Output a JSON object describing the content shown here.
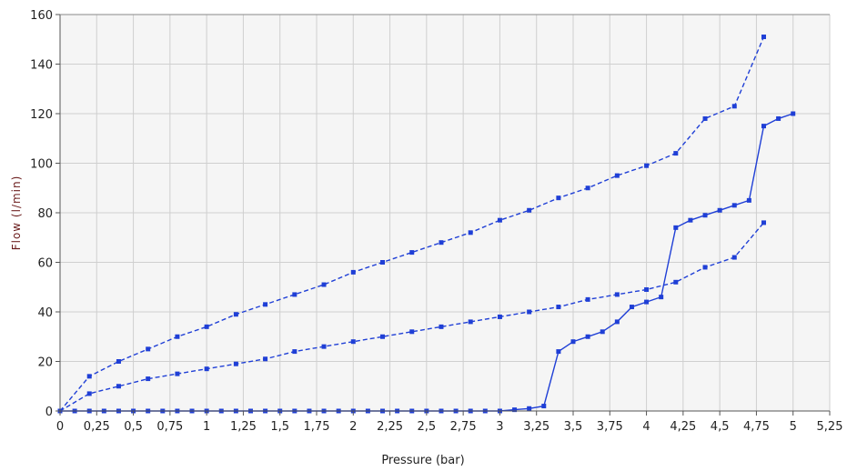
{
  "chart_data": {
    "type": "line",
    "xlabel": "Pressure (bar)",
    "ylabel": "Flow (l/min)",
    "xlim": [
      0,
      5.25
    ],
    "ylim": [
      0,
      160
    ],
    "xticks": [
      0,
      0.25,
      0.5,
      0.75,
      1,
      1.25,
      1.5,
      1.75,
      2,
      2.25,
      2.5,
      2.75,
      3,
      3.25,
      3.5,
      3.75,
      4,
      4.25,
      4.5,
      4.75,
      5,
      5.25
    ],
    "xtick_labels": [
      "0",
      "0,25",
      "0,5",
      "0,75",
      "1",
      "1,25",
      "1,5",
      "1,75",
      "2",
      "2,25",
      "2,5",
      "2,75",
      "3",
      "3,25",
      "3,5",
      "3,75",
      "4",
      "4,25",
      "4,5",
      "4,75",
      "5",
      "5,25"
    ],
    "yticks": [
      0,
      20,
      40,
      60,
      80,
      100,
      120,
      140,
      160
    ],
    "ytick_labels": [
      "0",
      "20",
      "40",
      "60",
      "80",
      "100",
      "120",
      "140",
      "160"
    ],
    "grid": true,
    "line_color": "#1f3fd6",
    "plot_background": "#f5f5f5",
    "series": [
      {
        "style": "dashed",
        "x": [
          0,
          0.2,
          0.4,
          0.6,
          0.8,
          1.0,
          1.2,
          1.4,
          1.6,
          1.8,
          2.0,
          2.2,
          2.4,
          2.6,
          2.8,
          3.0,
          3.2,
          3.4,
          3.6,
          3.8,
          4.0,
          4.2,
          4.4,
          4.6,
          4.8
        ],
        "y": [
          0,
          14,
          20,
          25,
          30,
          34,
          39,
          43,
          47,
          51,
          56,
          60,
          64,
          68,
          72,
          77,
          81,
          86,
          90,
          95,
          99,
          104,
          118,
          123,
          151
        ]
      },
      {
        "style": "dashed",
        "x": [
          0,
          0.2,
          0.4,
          0.6,
          0.8,
          1.0,
          1.2,
          1.4,
          1.6,
          1.8,
          2.0,
          2.2,
          2.4,
          2.6,
          2.8,
          3.0,
          3.2,
          3.4,
          3.6,
          3.8,
          4.0,
          4.2,
          4.4,
          4.6,
          4.8
        ],
        "y": [
          0,
          7,
          10,
          13,
          15,
          17,
          19,
          21,
          24,
          26,
          28,
          30,
          32,
          34,
          36,
          38,
          40,
          42,
          45,
          47,
          49,
          52,
          58,
          62,
          76
        ]
      },
      {
        "style": "solid",
        "x": [
          0,
          0.1,
          0.2,
          0.3,
          0.4,
          0.5,
          0.6,
          0.7,
          0.8,
          0.9,
          1.0,
          1.1,
          1.2,
          1.3,
          1.4,
          1.5,
          1.6,
          1.7,
          1.8,
          1.9,
          2.0,
          2.1,
          2.2,
          2.3,
          2.4,
          2.5,
          2.6,
          2.7,
          2.8,
          2.9,
          3.0,
          3.1,
          3.2,
          3.3,
          3.4,
          3.5,
          3.6,
          3.7,
          3.8,
          3.9,
          4.0,
          4.1,
          4.2,
          4.3,
          4.4,
          4.5,
          4.6,
          4.7,
          4.8,
          4.9,
          5.0
        ],
        "y": [
          0,
          0,
          0,
          0,
          0,
          0,
          0,
          0,
          0,
          0,
          0,
          0,
          0,
          0,
          0,
          0,
          0,
          0,
          0,
          0,
          0,
          0,
          0,
          0,
          0,
          0,
          0,
          0,
          0,
          0,
          0,
          0.5,
          1,
          2,
          24,
          28,
          30,
          32,
          36,
          42,
          44,
          46,
          74,
          77,
          79,
          81,
          83,
          85,
          115,
          118,
          120
        ]
      }
    ]
  }
}
